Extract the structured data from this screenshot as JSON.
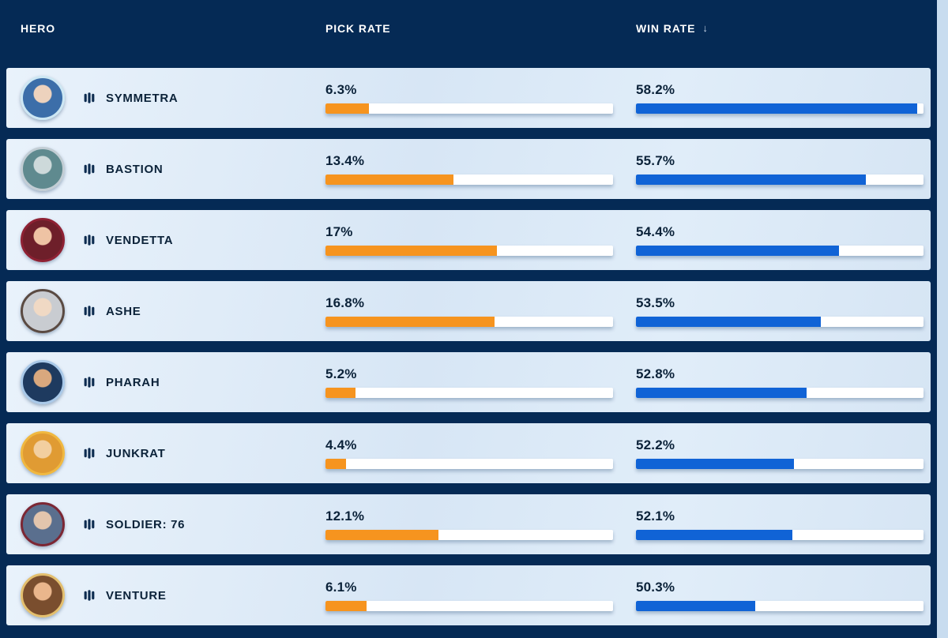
{
  "header": {
    "hero_label": "HERO",
    "pick_label": "PICK RATE",
    "win_label": "WIN RATE",
    "sort_icon": "↓",
    "sorted_by": "WIN RATE",
    "sort_direction": "desc"
  },
  "colors": {
    "page_bg": "#c8dcef",
    "header_bg": "#052a55",
    "header_text": "#ffffff",
    "row_text": "#0b2239",
    "track": "#ffffff",
    "pick_bar": "#f6941f",
    "win_bar": "#1063d6"
  },
  "scales": {
    "pick_range": [
      2.7,
      26.7
    ],
    "win_range": [
      44.5,
      58.5
    ]
  },
  "rows": [
    {
      "name": "SYMMETRA",
      "pick": 6.3,
      "pick_label": "6.3%",
      "win": 58.2,
      "win_label": "58.2%",
      "avatar": {
        "ring": "#cde7f3",
        "skin": "#edd2bd",
        "main": "#3c6ea9"
      }
    },
    {
      "name": "BASTION",
      "pick": 13.4,
      "pick_label": "13.4%",
      "win": 55.7,
      "win_label": "55.7%",
      "avatar": {
        "ring": "#c2cdd4",
        "skin": "#cdd9da",
        "main": "#5f8a8f"
      }
    },
    {
      "name": "VENDETTA",
      "pick": 17,
      "pick_label": "17%",
      "win": 54.4,
      "win_label": "54.4%",
      "avatar": {
        "ring": "#8e2133",
        "skin": "#eec3a4",
        "main": "#6e1f2a"
      }
    },
    {
      "name": "ASHE",
      "pick": 16.8,
      "pick_label": "16.8%",
      "win": 53.5,
      "win_label": "53.5%",
      "avatar": {
        "ring": "#5a4a42",
        "skin": "#f0d9c4",
        "main": "#c9ccd1"
      }
    },
    {
      "name": "PHARAH",
      "pick": 5.2,
      "pick_label": "5.2%",
      "win": 52.8,
      "win_label": "52.8%",
      "avatar": {
        "ring": "#a8c8e8",
        "skin": "#d9a87e",
        "main": "#1e3a5f"
      }
    },
    {
      "name": "JUNKRAT",
      "pick": 4.4,
      "pick_label": "4.4%",
      "win": 52.2,
      "win_label": "52.2%",
      "avatar": {
        "ring": "#f0b840",
        "skin": "#f2cfa0",
        "main": "#e09b33"
      }
    },
    {
      "name": "SOLDIER: 76",
      "pick": 12.1,
      "pick_label": "12.1%",
      "win": 52.1,
      "win_label": "52.1%",
      "avatar": {
        "ring": "#7c2734",
        "skin": "#e3c5ad",
        "main": "#5a6f8e"
      }
    },
    {
      "name": "VENTURE",
      "pick": 6.1,
      "pick_label": "6.1%",
      "win": 50.3,
      "win_label": "50.3%",
      "avatar": {
        "ring": "#e3bf6e",
        "skin": "#eab68c",
        "main": "#7a4e2e"
      }
    }
  ],
  "chart_data": {
    "type": "table",
    "columns": [
      "HERO",
      "PICK RATE",
      "WIN RATE"
    ],
    "sort": {
      "column": "WIN RATE",
      "direction": "desc"
    },
    "rows": [
      [
        "SYMMETRA",
        6.3,
        58.2
      ],
      [
        "BASTION",
        13.4,
        55.7
      ],
      [
        "VENDETTA",
        17,
        54.4
      ],
      [
        "ASHE",
        16.8,
        53.5
      ],
      [
        "PHARAH",
        5.2,
        52.8
      ],
      [
        "JUNKRAT",
        4.4,
        52.2
      ],
      [
        "SOLDIER: 76",
        12.1,
        52.1
      ],
      [
        "VENTURE",
        6.1,
        50.3
      ]
    ]
  }
}
